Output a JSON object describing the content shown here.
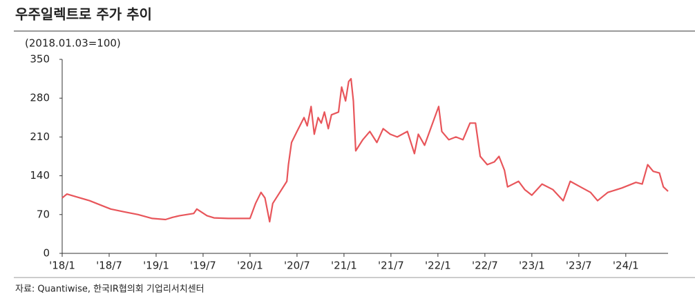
{
  "chart_data": {
    "type": "line",
    "title": "우주일렉트로 주가 추이",
    "subtitle": "(2018.01.03=100)",
    "source": "자료: Quantiwise, 한국IR협의회 기업리서치센터",
    "x": [
      0,
      0.6,
      1.8,
      3.5,
      5.3,
      6.2,
      7.9,
      9.7,
      11.5,
      13.2,
      14.1,
      15.0,
      16.8,
      17.2,
      18.5,
      19.4,
      21.2,
      22.9,
      24.0,
      24.7,
      25.4,
      25.9,
      26.5,
      26.9,
      27.8,
      28.7,
      28.9,
      29.3,
      30.0,
      30.9,
      31.3,
      31.8,
      32.2,
      32.7,
      33.1,
      33.5,
      34.0,
      34.4,
      35.3,
      35.7,
      36.2,
      36.6,
      36.9,
      37.2,
      37.5,
      38.4,
      39.3,
      40.2,
      41.0,
      41.9,
      42.8,
      44.1,
      45.0,
      45.5,
      46.3,
      47.2,
      48.1,
      48.5,
      49.4,
      50.3,
      51.2,
      52.1,
      52.8,
      53.4,
      54.3,
      55.2,
      55.8,
      56.5,
      56.9,
      58.3,
      59.1,
      60.0,
      61.3,
      62.7,
      64.0,
      64.9,
      66.2,
      67.5,
      68.4,
      69.7,
      71.5,
      73.3,
      74.1,
      74.8,
      75.5,
      76.3,
      76.8,
      77.4
    ],
    "series": [
      {
        "name": "우주일렉트로",
        "color": "#e8555a",
        "values": [
          100,
          107,
          102,
          95,
          85,
          80,
          75,
          70,
          63,
          61,
          65,
          68,
          72,
          80,
          68,
          64,
          63,
          63,
          63,
          90,
          110,
          100,
          57,
          90,
          110,
          130,
          160,
          200,
          220,
          245,
          230,
          265,
          215,
          245,
          235,
          255,
          225,
          250,
          255,
          300,
          275,
          310,
          315,
          275,
          185,
          205,
          220,
          200,
          225,
          215,
          210,
          220,
          180,
          215,
          195,
          230,
          265,
          220,
          205,
          210,
          205,
          235,
          235,
          175,
          160,
          165,
          175,
          150,
          120,
          130,
          115,
          105,
          125,
          115,
          95,
          130,
          120,
          110,
          95,
          110,
          118,
          128,
          125,
          160,
          148,
          145,
          120,
          112
        ]
      }
    ],
    "xlim": [
      0,
      77.4
    ],
    "xticks": [
      {
        "value": 0,
        "label": "'18/1"
      },
      {
        "value": 6,
        "label": "'18/7"
      },
      {
        "value": 12,
        "label": "'19/1"
      },
      {
        "value": 18,
        "label": "'19/7"
      },
      {
        "value": 24,
        "label": "'20/1"
      },
      {
        "value": 30,
        "label": "'20/7"
      },
      {
        "value": 36,
        "label": "'21/1"
      },
      {
        "value": 42,
        "label": "'21/7"
      },
      {
        "value": 48,
        "label": "'22/1"
      },
      {
        "value": 54,
        "label": "'22/7"
      },
      {
        "value": 60,
        "label": "'23/1"
      },
      {
        "value": 66,
        "label": "'23/7"
      },
      {
        "value": 72,
        "label": "'24/1"
      }
    ],
    "ylim": [
      0,
      350
    ],
    "yticks": [
      0,
      70,
      140,
      210,
      280,
      350
    ],
    "grid": false
  }
}
